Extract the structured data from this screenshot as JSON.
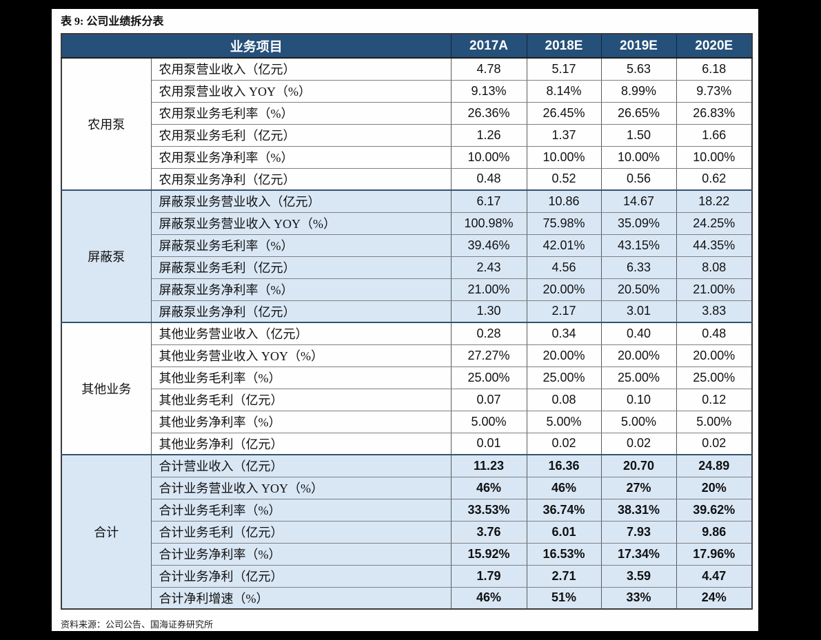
{
  "page": {
    "title": "表 9:  公司业绩拆分表",
    "source_note": "资料来源：公司公告、国海证券研究所"
  },
  "colors": {
    "header_bg": "#25507A",
    "header_text": "#FFFFFF",
    "highlight_row_bg": "#D9E7F5",
    "page_bg": "#FEFEFE",
    "surround_bg": "#000000"
  },
  "table": {
    "header": {
      "item_col": "业务项目",
      "year_cols": [
        "2017A",
        "2018E",
        "2019E",
        "2020E"
      ]
    },
    "groups": [
      {
        "name": "农用泵",
        "highlight": false,
        "bold": false,
        "rows": [
          {
            "label": "农用泵营业收入（亿元）",
            "values": [
              "4.78",
              "5.17",
              "5.63",
              "6.18"
            ]
          },
          {
            "label": "农用泵营业收入 YOY（%）",
            "values": [
              "9.13%",
              "8.14%",
              "8.99%",
              "9.73%"
            ]
          },
          {
            "label": "农用泵业务毛利率（%）",
            "values": [
              "26.36%",
              "26.45%",
              "26.65%",
              "26.83%"
            ]
          },
          {
            "label": "农用泵业务毛利（亿元）",
            "values": [
              "1.26",
              "1.37",
              "1.50",
              "1.66"
            ]
          },
          {
            "label": "农用泵业务净利率（%）",
            "values": [
              "10.00%",
              "10.00%",
              "10.00%",
              "10.00%"
            ]
          },
          {
            "label": "农用泵业务净利（亿元）",
            "values": [
              "0.48",
              "0.52",
              "0.56",
              "0.62"
            ]
          }
        ]
      },
      {
        "name": "屏蔽泵",
        "highlight": true,
        "bold": false,
        "rows": [
          {
            "label": "屏蔽泵业务营业收入（亿元）",
            "values": [
              "6.17",
              "10.86",
              "14.67",
              "18.22"
            ]
          },
          {
            "label": "屏蔽泵业务营业收入 YOY（%）",
            "values": [
              "100.98%",
              "75.98%",
              "35.09%",
              "24.25%"
            ]
          },
          {
            "label": "屏蔽泵业务毛利率（%）",
            "values": [
              "39.46%",
              "42.01%",
              "43.15%",
              "44.35%"
            ]
          },
          {
            "label": "屏蔽泵业务毛利（亿元）",
            "values": [
              "2.43",
              "4.56",
              "6.33",
              "8.08"
            ]
          },
          {
            "label": "屏蔽泵业务净利率（%）",
            "values": [
              "21.00%",
              "20.00%",
              "20.50%",
              "21.00%"
            ]
          },
          {
            "label": "屏蔽泵业务净利（亿元）",
            "values": [
              "1.30",
              "2.17",
              "3.01",
              "3.83"
            ]
          }
        ]
      },
      {
        "name": "其他业务",
        "highlight": false,
        "bold": false,
        "rows": [
          {
            "label": "其他业务营业收入（亿元）",
            "values": [
              "0.28",
              "0.34",
              "0.40",
              "0.48"
            ]
          },
          {
            "label": "其他业务营业收入 YOY（%）",
            "values": [
              "27.27%",
              "20.00%",
              "20.00%",
              "20.00%"
            ]
          },
          {
            "label": "其他业务毛利率（%）",
            "values": [
              "25.00%",
              "25.00%",
              "25.00%",
              "25.00%"
            ]
          },
          {
            "label": "其他业务毛利（亿元）",
            "values": [
              "0.07",
              "0.08",
              "0.10",
              "0.12"
            ]
          },
          {
            "label": "其他业务净利率（%）",
            "values": [
              "5.00%",
              "5.00%",
              "5.00%",
              "5.00%"
            ]
          },
          {
            "label": "其他业务净利（亿元）",
            "values": [
              "0.01",
              "0.02",
              "0.02",
              "0.02"
            ]
          }
        ]
      },
      {
        "name": "合计",
        "highlight": true,
        "bold": true,
        "rows": [
          {
            "label": "合计营业收入（亿元）",
            "values": [
              "11.23",
              "16.36",
              "20.70",
              "24.89"
            ]
          },
          {
            "label": "合计业务营业收入 YOY（%）",
            "values": [
              "46%",
              "46%",
              "27%",
              "20%"
            ]
          },
          {
            "label": "合计业务毛利率（%）",
            "values": [
              "33.53%",
              "36.74%",
              "38.31%",
              "39.62%"
            ]
          },
          {
            "label": "合计业务毛利（亿元）",
            "values": [
              "3.76",
              "6.01",
              "7.93",
              "9.86"
            ]
          },
          {
            "label": "合计业务净利率（%）",
            "values": [
              "15.92%",
              "16.53%",
              "17.34%",
              "17.96%"
            ]
          },
          {
            "label": "合计业务净利（亿元）",
            "values": [
              "1.79",
              "2.71",
              "3.59",
              "4.47"
            ]
          },
          {
            "label": "合计净利增速（%）",
            "values": [
              "46%",
              "51%",
              "33%",
              "24%"
            ]
          }
        ]
      }
    ]
  }
}
